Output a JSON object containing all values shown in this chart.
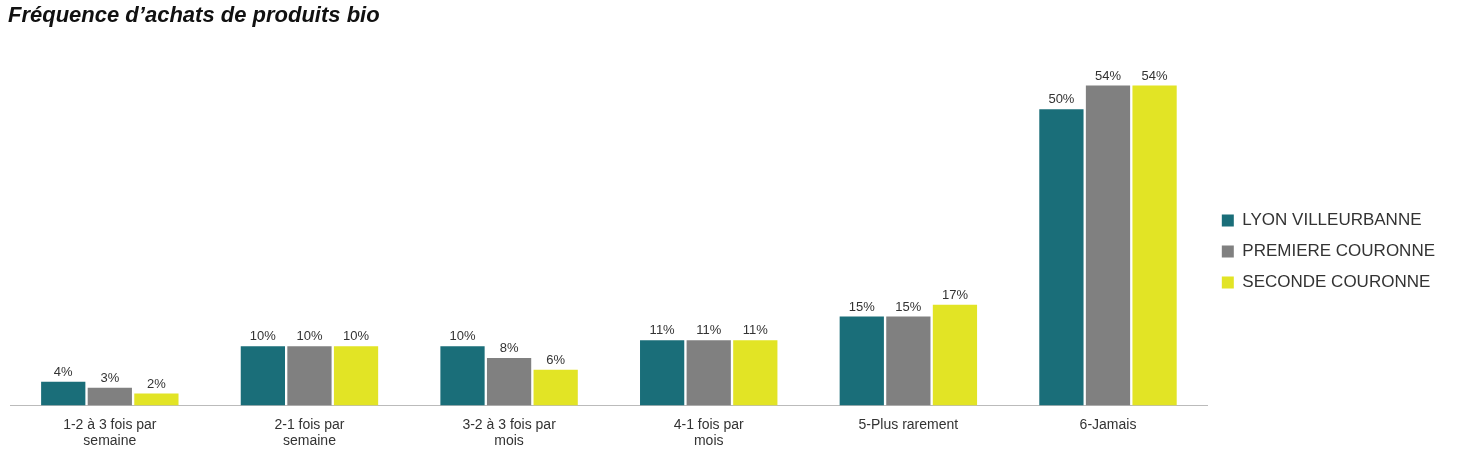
{
  "chart_data": {
    "type": "bar",
    "title": "Fréquence d’achats de produits bio",
    "categories": [
      "1-2 à 3 fois par semaine",
      "2-1 fois par semaine",
      "3-2 à 3 fois par mois",
      "4-1 fois par mois",
      "5-Plus rarement",
      "6-Jamais"
    ],
    "series": [
      {
        "name": "LYON VILLEURBANNE",
        "color": "#1a6e79",
        "values": [
          4,
          10,
          10,
          11,
          15,
          50
        ],
        "value_labels": [
          "4%",
          "10%",
          "10%",
          "11%",
          "15%",
          "50%"
        ]
      },
      {
        "name": "PREMIERE COURONNE",
        "color": "#808080",
        "values": [
          3,
          10,
          8,
          11,
          15,
          54
        ],
        "value_labels": [
          "3%",
          "10%",
          "8%",
          "11%",
          "15%",
          "54%"
        ]
      },
      {
        "name": "SECONDE COURONNE",
        "color": "#e2e425",
        "values": [
          2,
          10,
          6,
          11,
          17,
          54
        ],
        "value_labels": [
          "2%",
          "10%",
          "6%",
          "11%",
          "17%",
          "54%"
        ]
      }
    ],
    "legend": "right",
    "grid": false
  }
}
